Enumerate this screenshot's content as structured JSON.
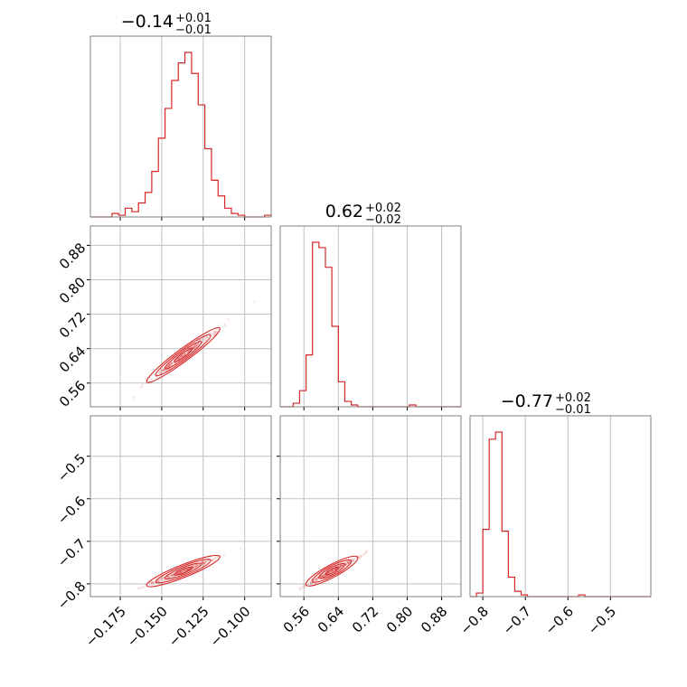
{
  "chart_data": {
    "type": "corner",
    "parameters": [
      {
        "title": {
          "median": "−0.14",
          "plus": "+0.01",
          "minus": "−0.01"
        },
        "range": [
          -0.193,
          -0.084
        ],
        "ticks": [
          -0.175,
          -0.15,
          -0.125,
          -0.1
        ],
        "tick_labels": [
          "−0.175",
          "−0.150",
          "−0.125",
          "−0.100"
        ],
        "hist_edges": [
          -0.193,
          -0.188,
          -0.184,
          -0.18,
          -0.176,
          -0.172,
          -0.168,
          -0.164,
          -0.16,
          -0.156,
          -0.152,
          -0.148,
          -0.144,
          -0.14,
          -0.136,
          -0.132,
          -0.128,
          -0.124,
          -0.12,
          -0.116,
          -0.112,
          -0.108,
          -0.104,
          -0.1,
          -0.096,
          -0.092,
          -0.088,
          -0.084
        ],
        "hist_counts": [
          0,
          0,
          0,
          0.02,
          0.01,
          0.05,
          0.03,
          0.08,
          0.14,
          0.26,
          0.45,
          0.62,
          0.78,
          0.88,
          0.94,
          0.82,
          0.64,
          0.39,
          0.21,
          0.12,
          0.05,
          0.02,
          0.01,
          0,
          0,
          0,
          0.01
        ]
      },
      {
        "title": {
          "median": "0.62",
          "plus": "+0.02",
          "minus": "−0.02"
        },
        "range": [
          0.505,
          0.925
        ],
        "ticks": [
          0.56,
          0.64,
          0.72,
          0.8,
          0.88
        ],
        "tick_labels": [
          "0.56",
          "0.64",
          "0.72",
          "0.80",
          "0.88"
        ],
        "hist_edges": [
          0.505,
          0.52,
          0.535,
          0.55,
          0.565,
          0.58,
          0.595,
          0.61,
          0.625,
          0.64,
          0.655,
          0.67,
          0.685,
          0.7,
          0.715,
          0.73,
          0.745,
          0.76,
          0.775,
          0.79,
          0.805,
          0.82,
          0.835,
          0.85,
          0.865,
          0.88,
          0.895,
          0.91,
          0.925
        ],
        "hist_counts": [
          0,
          0,
          0.02,
          0.09,
          0.29,
          0.92,
          0.89,
          0.78,
          0.45,
          0.14,
          0.03,
          0.01,
          0,
          0,
          0,
          0,
          0,
          0,
          0,
          0,
          0.01,
          0,
          0,
          0,
          0,
          0,
          0,
          0
        ]
      },
      {
        "title": {
          "median": "−0.77",
          "plus": "+0.02",
          "minus": "−0.01"
        },
        "range": [
          -0.83,
          -0.405
        ],
        "ticks": [
          -0.8,
          -0.7,
          -0.6,
          -0.5
        ],
        "tick_labels": [
          "−0.8",
          "−0.7",
          "−0.6",
          "−0.5"
        ],
        "hist_edges": [
          -0.83,
          -0.815,
          -0.8,
          -0.785,
          -0.77,
          -0.755,
          -0.74,
          -0.725,
          -0.71,
          -0.695,
          -0.68,
          -0.665,
          -0.65,
          -0.635,
          -0.62,
          -0.605,
          -0.59,
          -0.575,
          -0.56,
          -0.545,
          -0.53,
          -0.515,
          -0.5,
          -0.485,
          -0.47,
          -0.455,
          -0.44,
          -0.425,
          -0.405
        ],
        "hist_counts": [
          0,
          0.02,
          0.38,
          0.89,
          0.93,
          0.37,
          0.11,
          0.03,
          0.01,
          0,
          0,
          0,
          0,
          0,
          0,
          0,
          0,
          0.01,
          0,
          0,
          0,
          0,
          0,
          0,
          0,
          0,
          0,
          0
        ]
      }
    ],
    "correlation_pairs": [
      {
        "x": 0,
        "y": 1,
        "slope": 2.85,
        "center": [
          -0.137,
          0.625
        ],
        "x_sigma": 0.011,
        "spread": 0.004
      },
      {
        "x": 0,
        "y": 2,
        "slope": 1.55,
        "center": [
          -0.137,
          -0.77
        ],
        "x_sigma": 0.011,
        "spread": 0.003
      },
      {
        "x": 1,
        "y": 2,
        "slope": 0.54,
        "center": [
          0.625,
          -0.77
        ],
        "x_sigma": 0.03,
        "spread": 0.003
      }
    ],
    "color": "#d62728",
    "grid": true
  }
}
